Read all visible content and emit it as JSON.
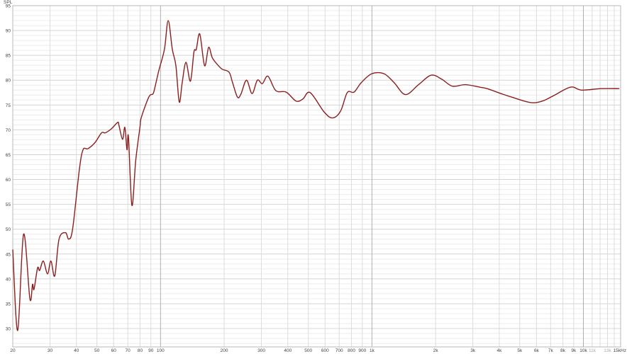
{
  "chart_data": {
    "type": "line",
    "title": "",
    "xlabel": "",
    "ylabel": "SPL",
    "x_scale": "log",
    "xlim": [
      20,
      15000
    ],
    "ylim": [
      26.3,
      95
    ],
    "grid": true,
    "line_color": "#8b1f1f",
    "x_ticks": [
      {
        "value": 20,
        "label": "20"
      },
      {
        "value": 30,
        "label": "30"
      },
      {
        "value": 40,
        "label": "40"
      },
      {
        "value": 50,
        "label": "50"
      },
      {
        "value": 60,
        "label": "60"
      },
      {
        "value": 70,
        "label": "70"
      },
      {
        "value": 80,
        "label": "80"
      },
      {
        "value": 90,
        "label": "90"
      },
      {
        "value": 100,
        "label": "100"
      },
      {
        "value": 200,
        "label": "200"
      },
      {
        "value": 300,
        "label": "300"
      },
      {
        "value": 400,
        "label": "400"
      },
      {
        "value": 500,
        "label": "500"
      },
      {
        "value": 600,
        "label": "600"
      },
      {
        "value": 700,
        "label": "700"
      },
      {
        "value": 800,
        "label": "800"
      },
      {
        "value": 900,
        "label": "900"
      },
      {
        "value": 1000,
        "label": "1k"
      },
      {
        "value": 2000,
        "label": "2k"
      },
      {
        "value": 3000,
        "label": "3k"
      },
      {
        "value": 4000,
        "label": "4k"
      },
      {
        "value": 5000,
        "label": "5k"
      },
      {
        "value": 6000,
        "label": "6k"
      },
      {
        "value": 7000,
        "label": "7k"
      },
      {
        "value": 8000,
        "label": "8k"
      },
      {
        "value": 9000,
        "label": "9k"
      },
      {
        "value": 10000,
        "label": "10k"
      },
      {
        "value": 11000,
        "label": "11k",
        "dim": true
      },
      {
        "value": 13000,
        "label": "13k",
        "dim": true
      },
      {
        "value": 15000,
        "label": "15kHz"
      }
    ],
    "y_ticks": [
      {
        "value": 30,
        "label": "30"
      },
      {
        "value": 35,
        "label": "35"
      },
      {
        "value": 40,
        "label": "40"
      },
      {
        "value": 45,
        "label": "45"
      },
      {
        "value": 50,
        "label": "50"
      },
      {
        "value": 55,
        "label": "55"
      },
      {
        "value": 60,
        "label": "60"
      },
      {
        "value": 65,
        "label": "65"
      },
      {
        "value": 70,
        "label": "70"
      },
      {
        "value": 75,
        "label": "75"
      },
      {
        "value": 80,
        "label": "80"
      },
      {
        "value": 85,
        "label": "85"
      },
      {
        "value": 90,
        "label": "90"
      },
      {
        "value": 95,
        "label": "95"
      }
    ],
    "series": [
      {
        "x": [
          20,
          21.1,
          22.5,
          24.1,
          24.8,
          25.2,
          26.2,
          26.8,
          27.9,
          29.2,
          30.3,
          31.6,
          33.1,
          35.5,
          36.8,
          38.4,
          41.3,
          43,
          45.3,
          48.9,
          52.6,
          54.8,
          58.5,
          62.7,
          63.5,
          66.1,
          67.8,
          69.4,
          70.5,
          73.2,
          76.3,
          79.9,
          81,
          88,
          91.9,
          93.4,
          98.1,
          104.3,
          108.7,
          113.7,
          118.2,
          122.6,
          126.6,
          131.9,
          138.5,
          143.9,
          147.6,
          153.3,
          161.6,
          168.8,
          175.8,
          187.1,
          195.8,
          211,
          219.1,
          231,
          240,
          255,
          271,
          287,
          303,
          322,
          351,
          393,
          437,
          471,
          510,
          594,
          651,
          711,
          764,
          823,
          890,
          998,
          1140,
          1273,
          1440,
          1661,
          1905,
          2138,
          2398,
          2768,
          3228,
          3506,
          4140,
          4573,
          5622,
          6401,
          7240,
          8695,
          9813,
          12100,
          14800
        ],
        "y": [
          45.9,
          29.6,
          49.0,
          36.0,
          38.9,
          37.9,
          42.2,
          41.7,
          43.6,
          41.0,
          43.6,
          40.6,
          48.0,
          49.3,
          48.0,
          50.1,
          62.0,
          66.0,
          66.2,
          67.4,
          69.4,
          69.4,
          70.2,
          71.5,
          71.0,
          68.1,
          70.5,
          66.0,
          68.6,
          54.8,
          63.8,
          70.5,
          72.4,
          76.6,
          77.2,
          78.0,
          81.9,
          86.2,
          92.0,
          86.2,
          82.9,
          75.6,
          79.5,
          83.6,
          79.8,
          85.7,
          86.2,
          89.3,
          82.9,
          86.6,
          84.5,
          83.0,
          82.2,
          81.6,
          79.5,
          76.6,
          77.2,
          80.0,
          77.3,
          80.0,
          79.3,
          80.8,
          77.9,
          77.6,
          75.8,
          76.2,
          77.5,
          73.6,
          72.4,
          73.8,
          77.5,
          77.6,
          79.5,
          81.3,
          81.3,
          79.5,
          77.1,
          79.1,
          81.0,
          80.2,
          78.8,
          79.1,
          78.6,
          78.3,
          77.2,
          76.6,
          75.5,
          75.8,
          76.9,
          78.6,
          78.0,
          78.3,
          78.3
        ]
      }
    ]
  }
}
